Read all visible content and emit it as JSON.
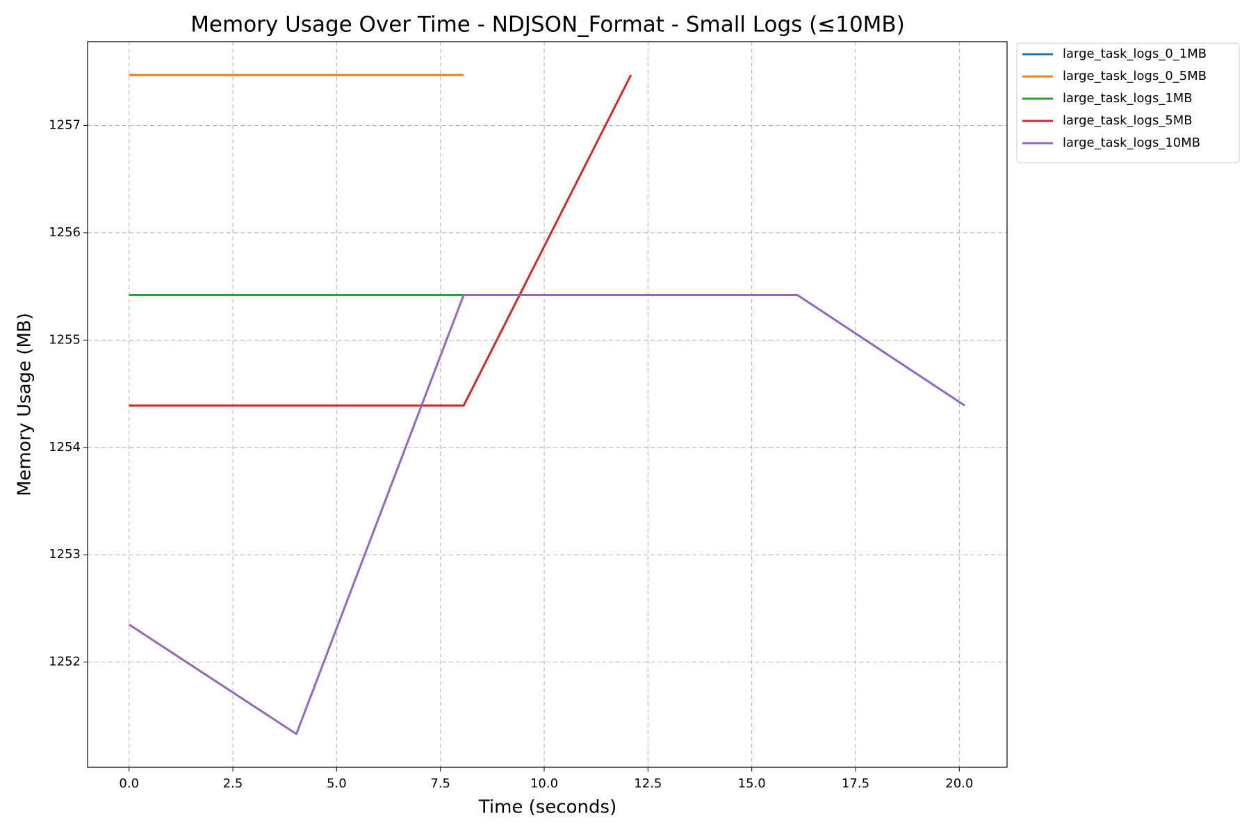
{
  "chart_data": {
    "type": "line",
    "title": "Memory Usage Over Time - NDJSON_Format - Small Logs (≤10MB)",
    "x_label": "Time (seconds)",
    "y_label": "Memory Usage (MB)",
    "xlim": [
      -1.0,
      21.15
    ],
    "ylim": [
      1251.02,
      1257.78
    ],
    "xticks": [
      {
        "value": 0,
        "label": "0.0"
      },
      2.5,
      {
        "value": 5,
        "label": "5.0"
      },
      7.5,
      {
        "value": 10,
        "label": "10.0"
      },
      12.5,
      {
        "value": 15,
        "label": "15.0"
      },
      17.5,
      {
        "value": 20,
        "label": "20.0"
      }
    ],
    "yticks": [
      1252,
      1253,
      1254,
      1255,
      1256,
      1257
    ],
    "grid": true,
    "legend": "outside-upper-right",
    "series": [
      {
        "name": "large_task_logs_0_1MB",
        "color": "#1f77b4",
        "x": [
          0,
          4.03,
          8.06
        ],
        "values": [
          1257.47,
          1257.47,
          1257.47
        ]
      },
      {
        "name": "large_task_logs_0_5MB",
        "color": "#ff7f0e",
        "x": [
          0,
          4.03,
          8.06
        ],
        "values": [
          1257.47,
          1257.47,
          1257.47
        ]
      },
      {
        "name": "large_task_logs_1MB",
        "color": "#2ca02c",
        "x": [
          0,
          4.03,
          8.06
        ],
        "values": [
          1255.42,
          1255.42,
          1255.42
        ]
      },
      {
        "name": "large_task_logs_5MB",
        "color": "#d62728",
        "x": [
          0,
          8.06,
          12.09
        ],
        "values": [
          1254.39,
          1254.39,
          1257.47
        ]
      },
      {
        "name": "large_task_logs_10MB",
        "color": "#9467bd",
        "x": [
          0,
          4.03,
          8.06,
          16.1,
          20.13
        ],
        "values": [
          1252.35,
          1251.33,
          1255.42,
          1255.42,
          1254.39
        ]
      }
    ]
  }
}
